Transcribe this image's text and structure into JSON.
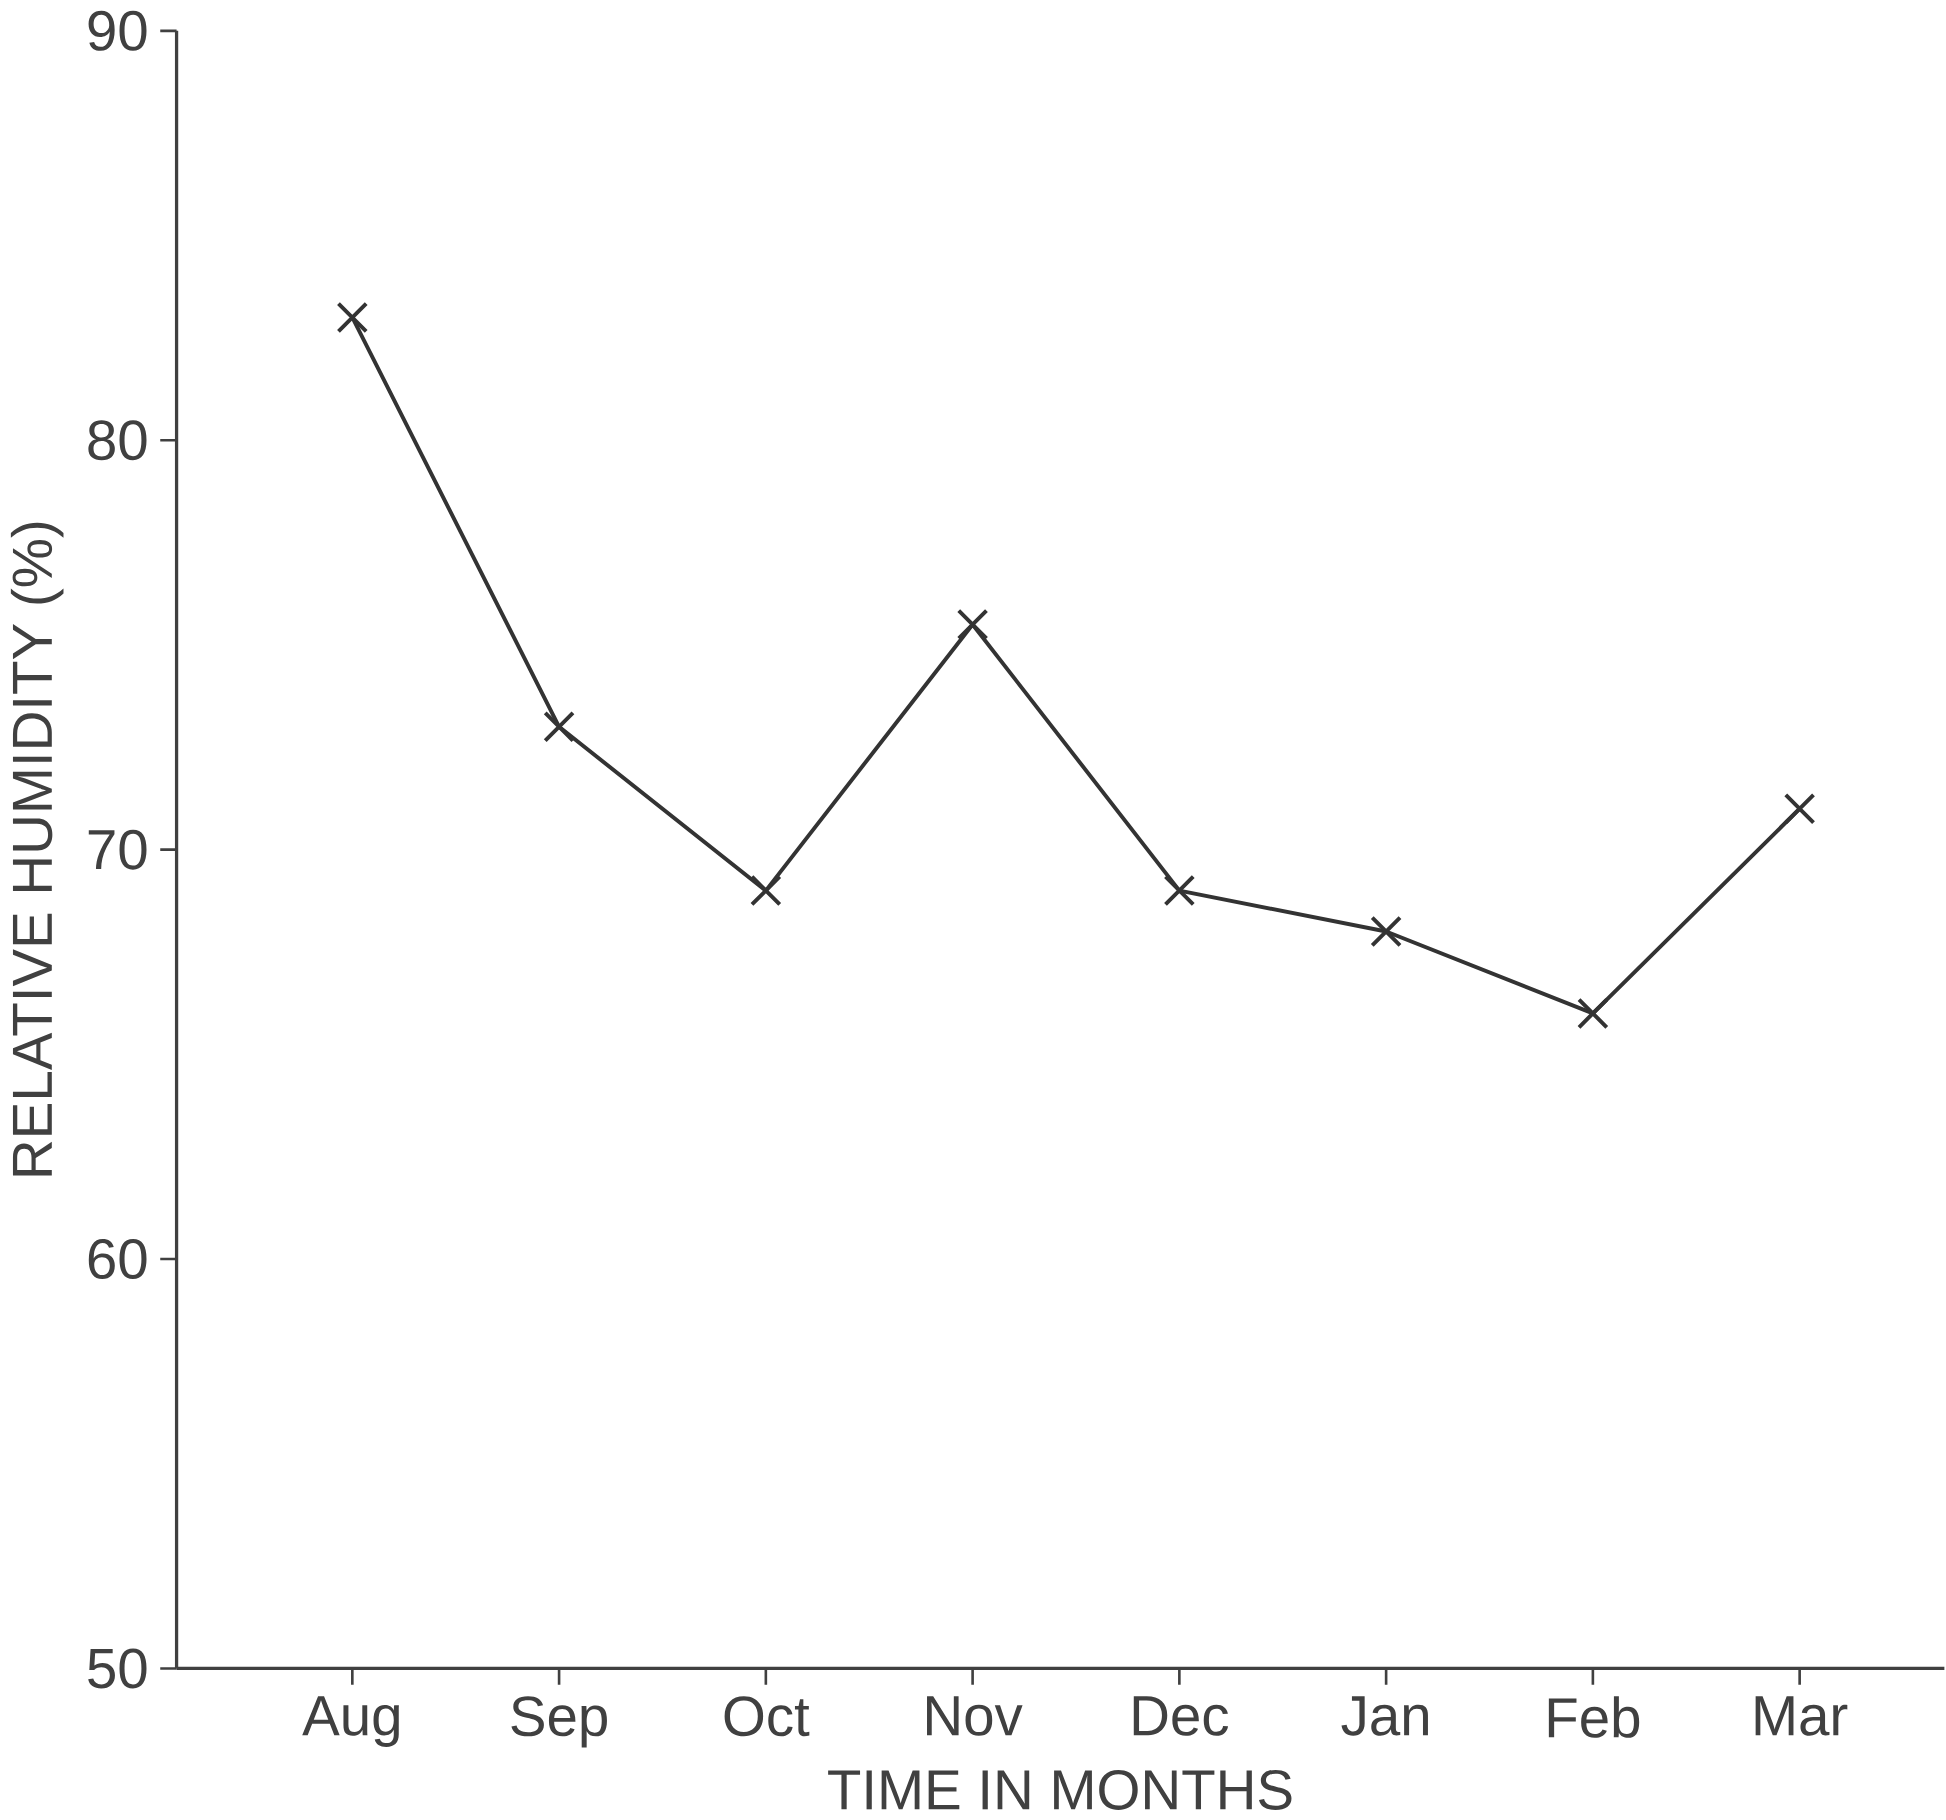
{
  "chart_data": {
    "type": "line",
    "xlabel": "TIME   IN   MONTHS",
    "ylabel": "RELATIVE   HUMIDITY   (%)",
    "categories": [
      "Aug",
      "Sep",
      "Oct",
      "Nov",
      "Dec",
      "Jan",
      "Feb",
      "Mar"
    ],
    "series": [
      {
        "color": "#333333",
        "values": [
          83,
          73,
          69,
          75.5,
          69,
          68,
          66,
          71
        ]
      }
    ],
    "ylim": [
      50,
      90
    ],
    "yticks": [
      50,
      60,
      70,
      80,
      90
    ],
    "marker": "cross",
    "line_style": "solid"
  }
}
